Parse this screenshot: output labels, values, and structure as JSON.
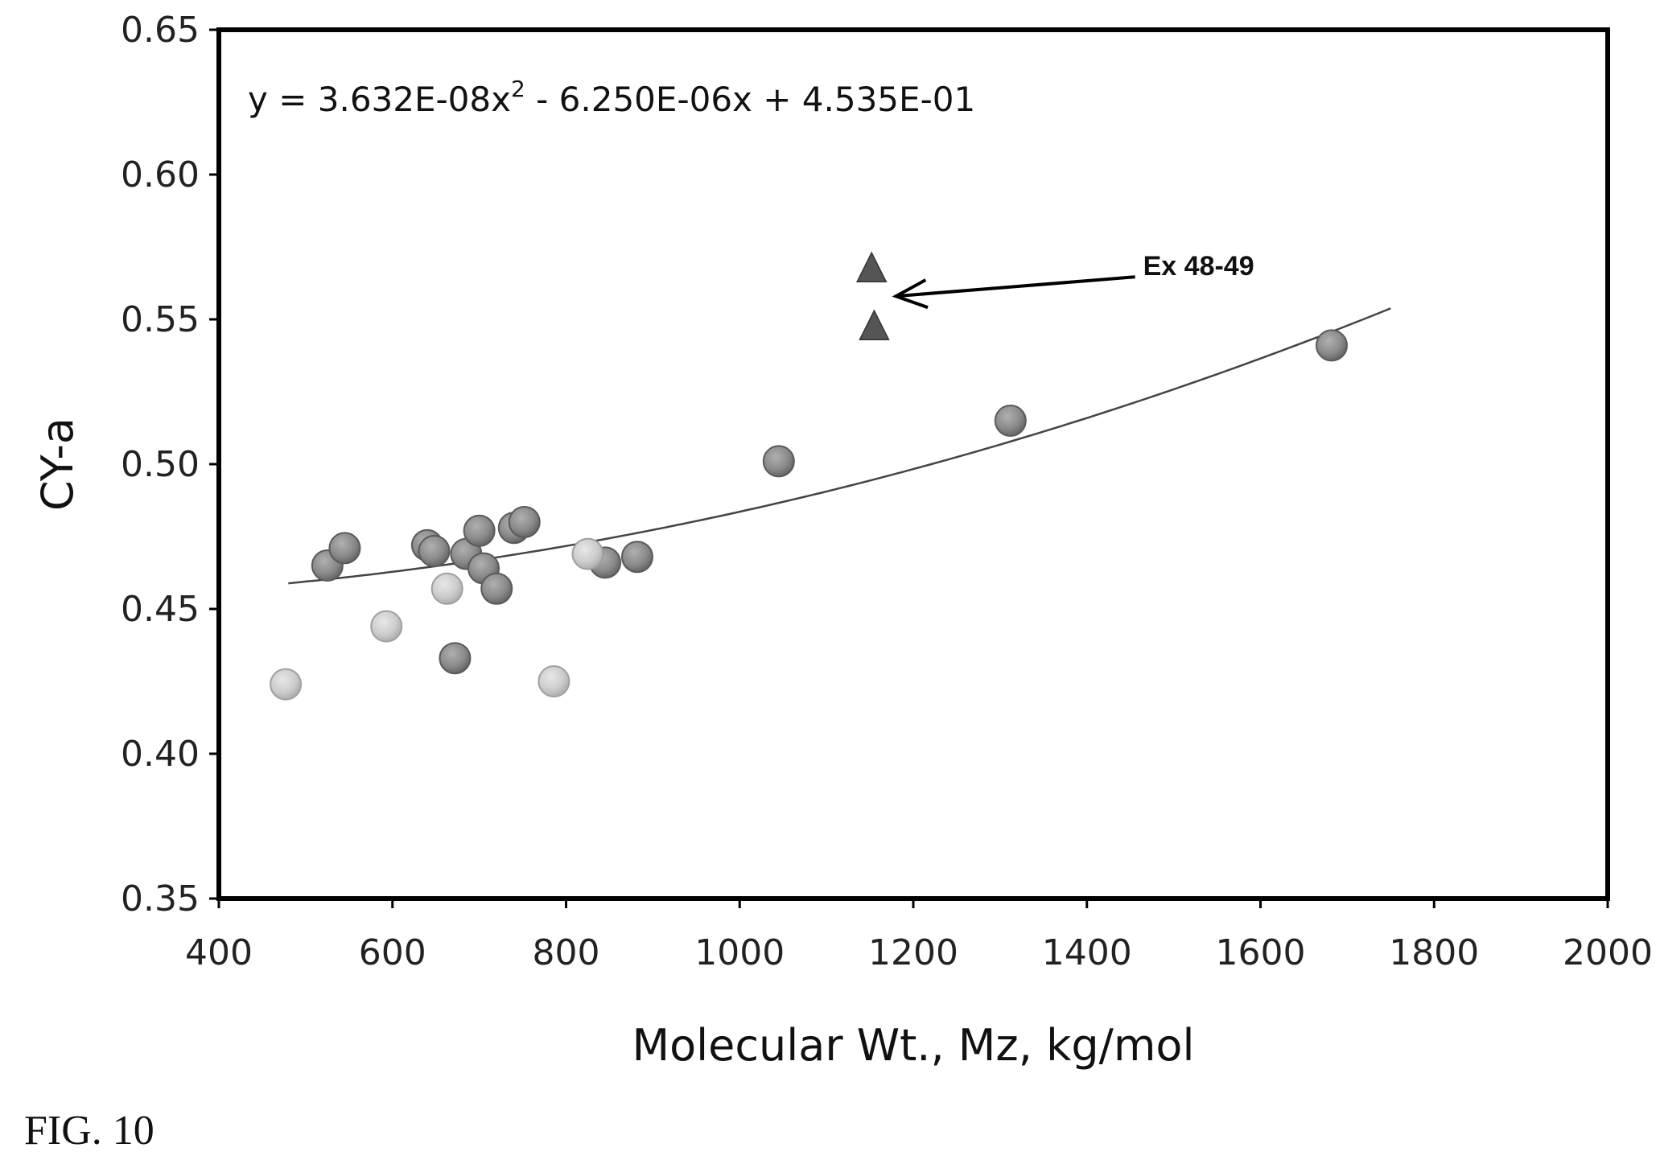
{
  "figure_label": "FIG. 10",
  "chart_data": {
    "type": "scatter",
    "title": "",
    "xlabel": "Molecular Wt., Mz, kg/mol",
    "ylabel": "CY-a",
    "xlim": [
      400,
      2000
    ],
    "ylim": [
      0.35,
      0.65
    ],
    "x_ticks": [
      400,
      600,
      800,
      1000,
      1200,
      1400,
      1600,
      1800,
      2000
    ],
    "x_tick_labels": [
      "400",
      "600",
      "800",
      "1000",
      "1200",
      "1400",
      "1600",
      "1800",
      "2000"
    ],
    "y_ticks": [
      0.35,
      0.4,
      0.45,
      0.5,
      0.55,
      0.6,
      0.65
    ],
    "y_tick_labels": [
      "0.35",
      "0.40",
      "0.45",
      "0.50",
      "0.55",
      "0.60",
      "0.65"
    ],
    "grid": false,
    "equation": {
      "prefix": "y = 3.632E-08x",
      "superscript": "2",
      "suffix": " - 6.250E-06x + 4.535E-01"
    },
    "trendline": {
      "type": "polynomial",
      "coefficients": [
        3.632e-08,
        -6.25e-06,
        0.4535
      ],
      "x_range": [
        480,
        1750
      ],
      "color": "#444444"
    },
    "annotation": {
      "text": "Ex 48-49",
      "points_to": [
        1180,
        0.558
      ],
      "text_anchor": [
        1500,
        0.568
      ]
    },
    "series": [
      {
        "marker": "circle",
        "color": "#8f8f8f",
        "points": [
          [
            525,
            0.465
          ],
          [
            545,
            0.471
          ],
          [
            640,
            0.472
          ],
          [
            648,
            0.47
          ],
          [
            685,
            0.469
          ],
          [
            700,
            0.477
          ],
          [
            705,
            0.464
          ],
          [
            720,
            0.457
          ],
          [
            740,
            0.478
          ],
          [
            752,
            0.48
          ],
          [
            845,
            0.466
          ],
          [
            882,
            0.468
          ],
          [
            672,
            0.433
          ],
          [
            1045,
            0.501
          ],
          [
            1312,
            0.515
          ],
          [
            1682,
            0.541
          ]
        ]
      },
      {
        "marker": "circle",
        "color": "#cfcfcf",
        "points": [
          [
            477,
            0.424
          ],
          [
            593,
            0.444
          ],
          [
            663,
            0.457
          ],
          [
            786,
            0.425
          ],
          [
            825,
            0.469
          ]
        ]
      },
      {
        "marker": "triangle",
        "color": "#555555",
        "points": [
          [
            1152,
            0.568
          ],
          [
            1155,
            0.548
          ]
        ]
      }
    ]
  }
}
